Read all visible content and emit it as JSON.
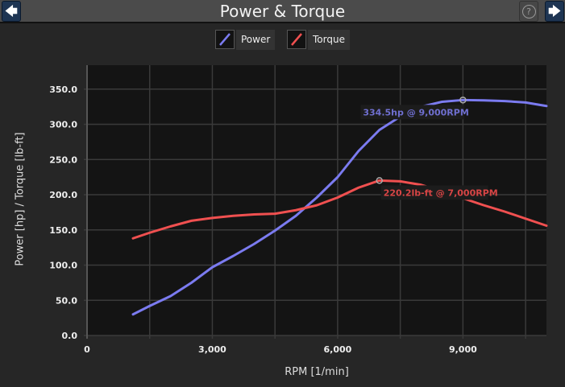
{
  "header": {
    "title": "Power & Torque",
    "back_icon": "arrow-left-icon",
    "forward_icon": "arrow-right-icon",
    "help_icon": "question-circle-icon",
    "back_glyph": "🡄",
    "forward_glyph": "🡆",
    "help_glyph": "?"
  },
  "chart_data": {
    "type": "line",
    "xlabel": "RPM [1/min]",
    "ylabel": "Power [hp] / Torque [lb-ft]",
    "xlim": [
      0,
      11000
    ],
    "ylim": [
      0,
      384
    ],
    "xticks": [
      0,
      3000,
      6000,
      9000
    ],
    "xtick_labels": [
      "0",
      "3,000",
      "6,000",
      "9,000"
    ],
    "yticks": [
      0,
      50,
      100,
      150,
      200,
      250,
      300,
      350
    ],
    "ytick_labels": [
      "0.0",
      "50.0",
      "100.0",
      "150.0",
      "200.0",
      "250.0",
      "300.0",
      "350.0"
    ],
    "grid": true,
    "legend_position": "top-center",
    "x": [
      1100,
      1500,
      2000,
      2500,
      3000,
      3500,
      4000,
      4500,
      5000,
      5500,
      6000,
      6500,
      7000,
      7500,
      8000,
      8500,
      9000,
      9500,
      10000,
      10500,
      11000
    ],
    "series": [
      {
        "name": "Power",
        "color": "#7b7bf0",
        "values": [
          30,
          42,
          56,
          75,
          97,
          113,
          130,
          149,
          170,
          196,
          225,
          262,
          292,
          311,
          325,
          332,
          334.5,
          334,
          333,
          331,
          326
        ]
      },
      {
        "name": "Torque",
        "color": "#f05050",
        "values": [
          138,
          146,
          155,
          163,
          167,
          170,
          172,
          173,
          178,
          185,
          196,
          210,
          220.2,
          219,
          214,
          205,
          195,
          185,
          176,
          166,
          156
        ]
      }
    ],
    "annotations": [
      {
        "series": "Power",
        "x": 9000,
        "y": 334.5,
        "text": "334.5hp @ 9,000RPM",
        "color": "#6f6fd0"
      },
      {
        "series": "Torque",
        "x": 7000,
        "y": 220.2,
        "text": "220.2lb-ft @ 7,000RPM",
        "color": "#d84545"
      }
    ]
  }
}
